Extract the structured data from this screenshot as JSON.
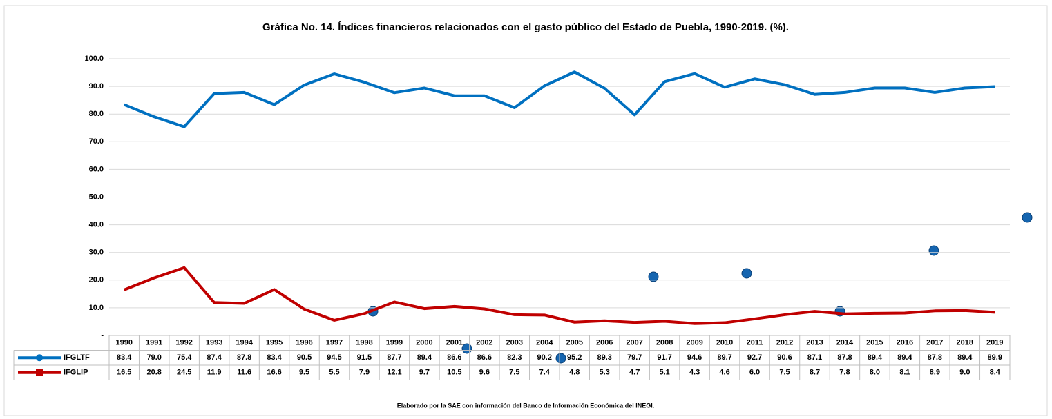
{
  "chart_data": {
    "type": "line",
    "title": "Gráfica No. 14. Índices financieros relacionados con el gasto público del Estado de Puebla, 1990-2019. (%).",
    "footnote": "Elaborado por la SAE con información del Banco de Información Económica del INEGI.",
    "categories": [
      "1990",
      "1991",
      "1992",
      "1993",
      "1994",
      "1995",
      "1996",
      "1997",
      "1998",
      "1999",
      "2000",
      "2001",
      "2002",
      "2003",
      "2004",
      "2005",
      "2006",
      "2007",
      "2008",
      "2009",
      "2010",
      "2011",
      "2012",
      "2013",
      "2014",
      "2015",
      "2016",
      "2017",
      "2018",
      "2019"
    ],
    "ylim": [
      0,
      100
    ],
    "yticks": [
      {
        "value": 0,
        "label": "-"
      },
      {
        "value": 10,
        "label": "10.0"
      },
      {
        "value": 20,
        "label": "20.0"
      },
      {
        "value": 30,
        "label": "30.0"
      },
      {
        "value": 40,
        "label": "40.0"
      },
      {
        "value": 50,
        "label": "50.0"
      },
      {
        "value": 60,
        "label": "60.0"
      },
      {
        "value": 70,
        "label": "70.0"
      },
      {
        "value": 80,
        "label": "80.0"
      },
      {
        "value": 90,
        "label": "90.0"
      },
      {
        "value": 100,
        "label": "100.0"
      }
    ],
    "grid": true,
    "series": [
      {
        "name": "IFGLTF",
        "color": "#0070c0",
        "marker": "circle",
        "values": [
          83.4,
          79.0,
          75.4,
          87.4,
          87.8,
          83.4,
          90.5,
          94.5,
          91.5,
          87.7,
          89.4,
          86.6,
          86.6,
          82.3,
          90.2,
          95.2,
          89.3,
          79.7,
          91.7,
          94.6,
          89.7,
          92.7,
          90.6,
          87.1,
          87.8,
          89.4,
          89.4,
          87.8,
          89.4,
          89.9
        ],
        "value_labels": [
          "83.4",
          "79.0",
          "75.4",
          "87.4",
          "87.8",
          "83.4",
          "90.5",
          "94.5",
          "91.5",
          "87.7",
          "89.4",
          "86.6",
          "86.6",
          "82.3",
          "90.2",
          "95.2",
          "89.3",
          "79.7",
          "91.7",
          "94.6",
          "89.7",
          "92.7",
          "90.6",
          "87.1",
          "87.8",
          "89.4",
          "89.4",
          "87.8",
          "89.4",
          "89.9"
        ]
      },
      {
        "name": "IFGLIP",
        "color": "#c00000",
        "marker": "square",
        "values": [
          16.5,
          20.8,
          24.5,
          11.9,
          11.6,
          16.6,
          9.5,
          5.5,
          7.9,
          12.1,
          9.7,
          10.5,
          9.6,
          7.5,
          7.4,
          4.8,
          5.3,
          4.7,
          5.1,
          4.3,
          4.6,
          6.0,
          7.5,
          8.7,
          7.8,
          8.0,
          8.1,
          8.9,
          9.0,
          8.4
        ],
        "value_labels": [
          "16.5",
          "20.8",
          "24.5",
          "11.9",
          "11.6",
          "16.6",
          "9.5",
          "5.5",
          "7.9",
          "12.1",
          "9.7",
          "10.5",
          "9.6",
          "7.5",
          "7.4",
          "4.8",
          "5.3",
          "4.7",
          "5.1",
          "4.3",
          "4.6",
          "6.0",
          "7.5",
          "8.7",
          "7.8",
          "8.0",
          "8.1",
          "8.9",
          "9.0",
          "8.4"
        ]
      }
    ]
  }
}
